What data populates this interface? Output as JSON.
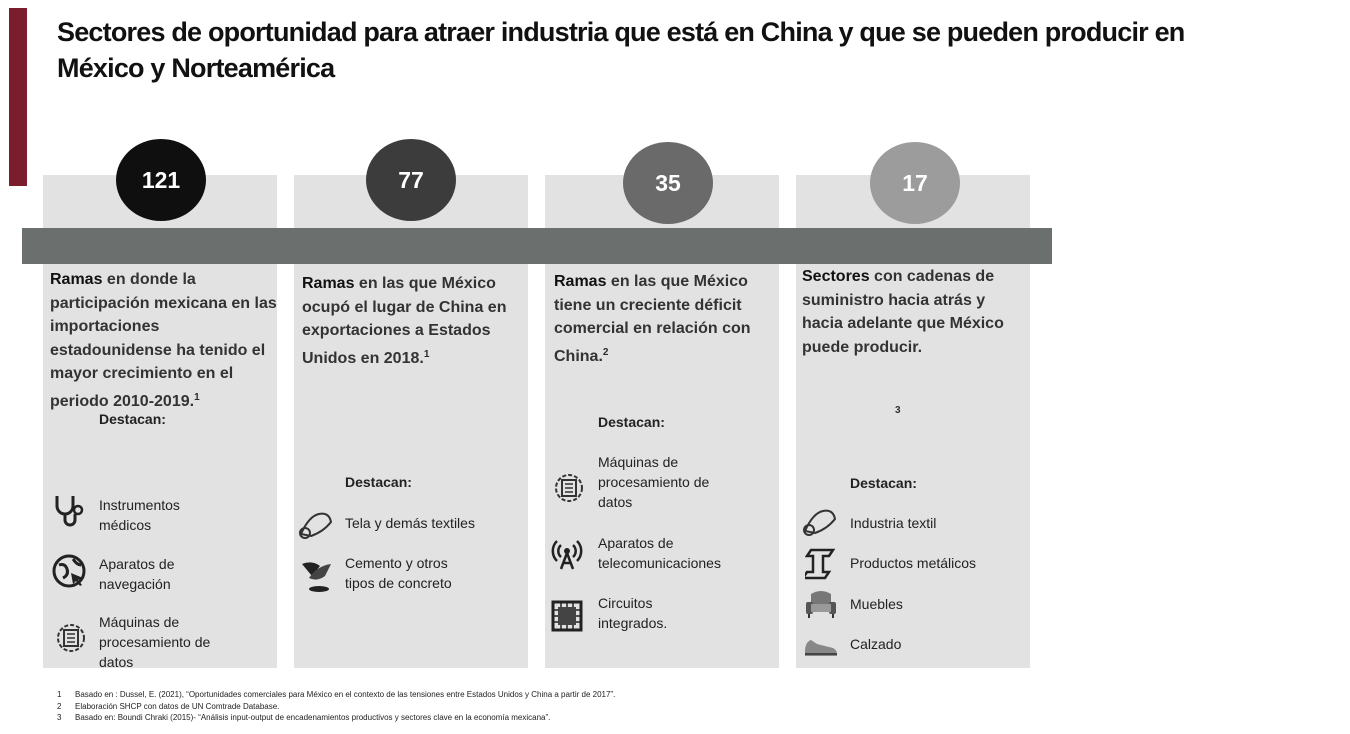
{
  "title": {
    "line1": "Sectores de oportunidad para atraer industria que está en China y que se pueden producir en",
    "line2": "México y  Norteamérica"
  },
  "colors": {
    "accent": "#7a1e2e",
    "card": "#e2e2e2",
    "timeline": "#6b6f6d",
    "circle1": "#0f0f0f",
    "circle2": "#3c3c3c",
    "circle3": "#6a6a6a",
    "circle4": "#9c9c9c"
  },
  "columns": [
    {
      "count": "121",
      "lead": "Ramas",
      "rest": " en donde la participación  mexicana en las  importaciones estadounidense ha  tenido el mayor  crecimiento en el periodo 2010-2019.",
      "sup": "1",
      "destacan": "Destacan:",
      "items": [
        {
          "icon": "stethoscope-icon",
          "label": "Instrumentos\nmédicos"
        },
        {
          "icon": "navigation-globe-icon",
          "label": "Aparatos de\nnavegación"
        },
        {
          "icon": "data-processing-icon",
          "label": "Máquinas de\nprocesamiento de\ndatos"
        }
      ]
    },
    {
      "count": "77",
      "lead": "Ramas",
      "rest": " en las que  México ocupó el lugar de China en exportaciones a Estados Unidos en 2018.",
      "sup": "1",
      "destacan": "Destacan:",
      "items": [
        {
          "icon": "textile-roll-icon",
          "label": "Tela y demás textiles"
        },
        {
          "icon": "cement-trowel-icon",
          "label": "Cemento y otros\ntipos de concreto"
        }
      ]
    },
    {
      "count": "35",
      "lead": "Ramas",
      "rest": " en las que México tiene un creciente déficit comercial en  relación con China.",
      "sup": "2",
      "destacan": "Destacan:",
      "items": [
        {
          "icon": "data-processing-icon",
          "label": "Máquinas de\nprocesamiento de\ndatos"
        },
        {
          "icon": "antenna-tower-icon",
          "label": "Aparatos de\ntelecomunicaciones"
        },
        {
          "icon": "chip-icon",
          "label": "Circuitos\nintegrados."
        }
      ]
    },
    {
      "count": "17",
      "lead": "Sectores",
      "rest": " con cadenas de suministro hacia  atrás y hacia  adelante que México puede  producir.",
      "sup": "",
      "ref": "3",
      "destacan": "Destacan:",
      "items": [
        {
          "icon": "textile-roll-icon",
          "label": "Industria textil"
        },
        {
          "icon": "steel-beam-icon",
          "label": "Productos metálicos"
        },
        {
          "icon": "armchair-icon",
          "label": "Muebles"
        },
        {
          "icon": "shoe-icon",
          "label": "Calzado"
        }
      ]
    }
  ],
  "footnotes": [
    {
      "num": "1",
      "text": "Basado en : Dussel, E. (2021), “Oportunidades comerciales para México en el contexto de las tensiones entre Estados Unidos y China a partir de 2017”."
    },
    {
      "num": "2",
      "text": "Elaboración SHCP con datos de UN Comtrade Database."
    },
    {
      "num": "3",
      "text": "Basado en: Boundi Chraki (2015)- “Análisis input-output de encadenamientos productivos y sectores clave en la economía mexicana”."
    }
  ]
}
